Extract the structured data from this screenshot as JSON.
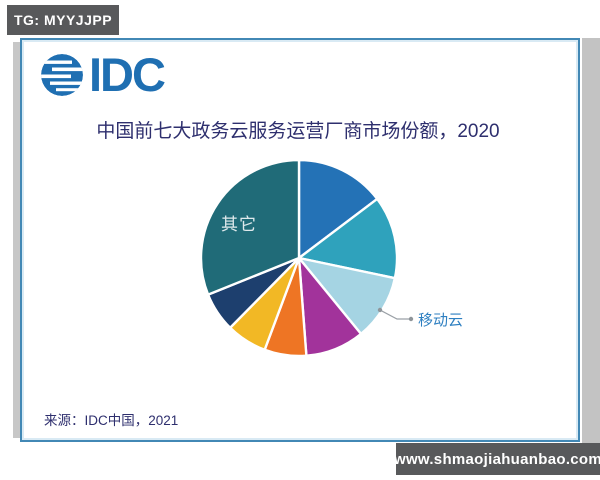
{
  "page": {
    "badge": "TG: MYYJJPP",
    "logo_text": "IDC",
    "source": "来源：IDC中国，2021",
    "watermark": "www.shmaojiahuanbao.com"
  },
  "colors": {
    "badge_bg": "#58595B",
    "card_border": "#4288b5",
    "logo_blue": "#1f6fb2",
    "title_text": "#2e2f6e",
    "callout_gray": "#9aa0a6",
    "mobile_label_blue": "#2d7fc1"
  },
  "chart_data": {
    "type": "pie",
    "title": "中国前七大政务云服务运营厂商市场份额，2020",
    "legend_position": "none",
    "direction": "clockwise",
    "start_angle_deg": 0,
    "segments": [
      {
        "label": "",
        "percent": 14.7,
        "color": "#2472B6"
      },
      {
        "label": "",
        "percent": 13.6,
        "color": "#2FA2BC"
      },
      {
        "label": "移动云",
        "percent": 10.8,
        "color": "#A5D4E3"
      },
      {
        "label": "",
        "percent": 9.7,
        "color": "#A2339B"
      },
      {
        "label": "",
        "percent": 6.9,
        "color": "#EE7524"
      },
      {
        "label": "",
        "percent": 6.7,
        "color": "#F2B825"
      },
      {
        "label": "",
        "percent": 6.5,
        "color": "#1D3F6E"
      },
      {
        "label": "其它",
        "percent": 31.1,
        "color": "#206B78"
      }
    ]
  }
}
